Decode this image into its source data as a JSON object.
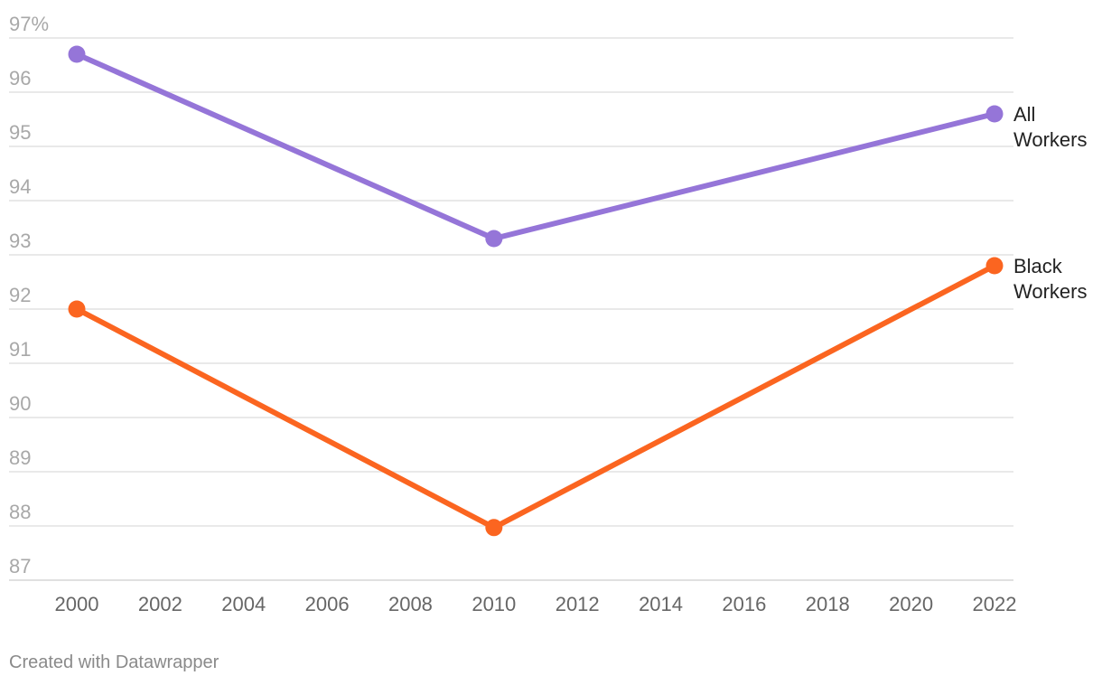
{
  "chart_data": {
    "type": "line",
    "x": [
      2000,
      2010,
      2022
    ],
    "xticks": [
      2000,
      2002,
      2004,
      2006,
      2008,
      2010,
      2012,
      2014,
      2016,
      2018,
      2020,
      2022
    ],
    "yticks": [
      87,
      88,
      89,
      90,
      91,
      92,
      93,
      94,
      95,
      96,
      97
    ],
    "ytick_top_label": "97%",
    "xlim": [
      2000,
      2022
    ],
    "ylim": [
      87,
      97
    ],
    "grid": true,
    "series": [
      {
        "name": "All Workers",
        "label_lines": [
          "All",
          "Workers"
        ],
        "color": "#9575d8",
        "values": [
          96.7,
          93.3,
          95.6
        ]
      },
      {
        "name": "Black Workers",
        "label_lines": [
          "Black",
          "Workers"
        ],
        "color": "#fb6520",
        "values": [
          92.0,
          87.97,
          92.8
        ]
      }
    ],
    "legend": "direct labels at line ends (right)"
  },
  "footer": {
    "credit": "Created with Datawrapper"
  }
}
